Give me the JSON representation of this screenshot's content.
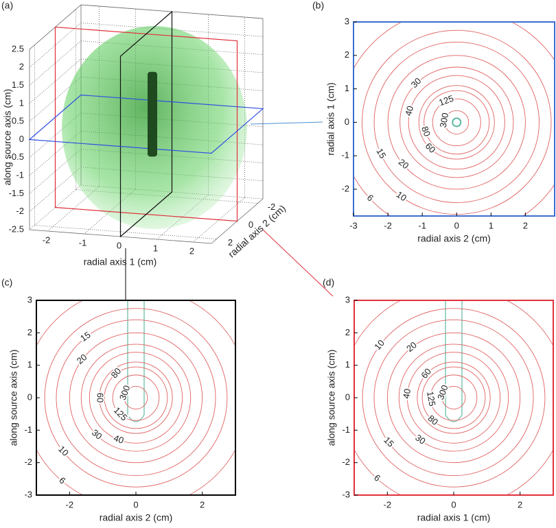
{
  "chart_data": [
    {
      "type": "volume3d",
      "panel_label": "(a)",
      "xlabel": "radial axis 1 (cm)",
      "ylabel": "radial axis 2 (cm)",
      "zlabel": "along source axis (cm)",
      "xlim": [
        -2.5,
        2.5
      ],
      "xticks": [
        -2,
        -1,
        0,
        1,
        2
      ],
      "ylim": [
        -2.5,
        2.5
      ],
      "yticks": [
        -2,
        0,
        2
      ],
      "zlim": [
        -2.5,
        2.5
      ],
      "zticks": [
        -2.5,
        -2,
        -1.5,
        -1,
        -0.5,
        0,
        0.5,
        1,
        1.5,
        2,
        2.5
      ],
      "grid": true
    },
    {
      "type": "contour",
      "panel_label": "(b)",
      "xlabel": "radial axis 2 (cm)",
      "ylabel": "radial axis 1 (cm)",
      "xlim": [
        -3,
        2.85
      ],
      "xticks": [
        -3,
        -2,
        -1,
        0,
        1,
        2
      ],
      "ylim": [
        -2.8,
        3
      ],
      "yticks": [
        -2,
        -1,
        0,
        1,
        2,
        3
      ],
      "levels": [
        300,
        125,
        80,
        60,
        40,
        30,
        20,
        15,
        10,
        6
      ],
      "radii": [
        0.35,
        0.7,
        0.95,
        1.1,
        1.4,
        1.65,
        2.0,
        2.4,
        2.75,
        3.4
      ],
      "line_color": "#e06060",
      "frame_color": "#3a6fd0"
    },
    {
      "type": "contour",
      "panel_label": "(c)",
      "xlabel": "radial axis 2 (cm)",
      "ylabel": "along source axis (cm)",
      "xlim": [
        -3,
        3
      ],
      "xticks": [
        -2,
        0,
        2
      ],
      "ylim": [
        -3,
        3
      ],
      "yticks": [
        -3,
        -2,
        -1,
        0,
        1,
        2,
        3
      ],
      "levels": [
        300,
        125,
        80,
        60,
        40,
        30,
        20,
        15,
        10,
        6
      ],
      "radii": [
        0.35,
        0.7,
        0.95,
        1.1,
        1.4,
        1.65,
        2.0,
        2.4,
        2.75,
        3.4
      ],
      "line_color": "#e06060",
      "frame_color": "#000000"
    },
    {
      "type": "contour",
      "panel_label": "(d)",
      "xlabel": "radial axis 1 (cm)",
      "ylabel": "along source axis (cm)",
      "xlim": [
        -3,
        3
      ],
      "xticks": [
        -2,
        0,
        2
      ],
      "ylim": [
        -3,
        3
      ],
      "yticks": [
        -3,
        -2,
        -1,
        0,
        1,
        2,
        3
      ],
      "levels": [
        300,
        125,
        80,
        60,
        40,
        30,
        20,
        15,
        10,
        6
      ],
      "radii": [
        0.35,
        0.7,
        0.95,
        1.1,
        1.4,
        1.65,
        2.0,
        2.4,
        2.75,
        3.4
      ],
      "line_color": "#e06060",
      "frame_color": "#e0303a"
    }
  ]
}
